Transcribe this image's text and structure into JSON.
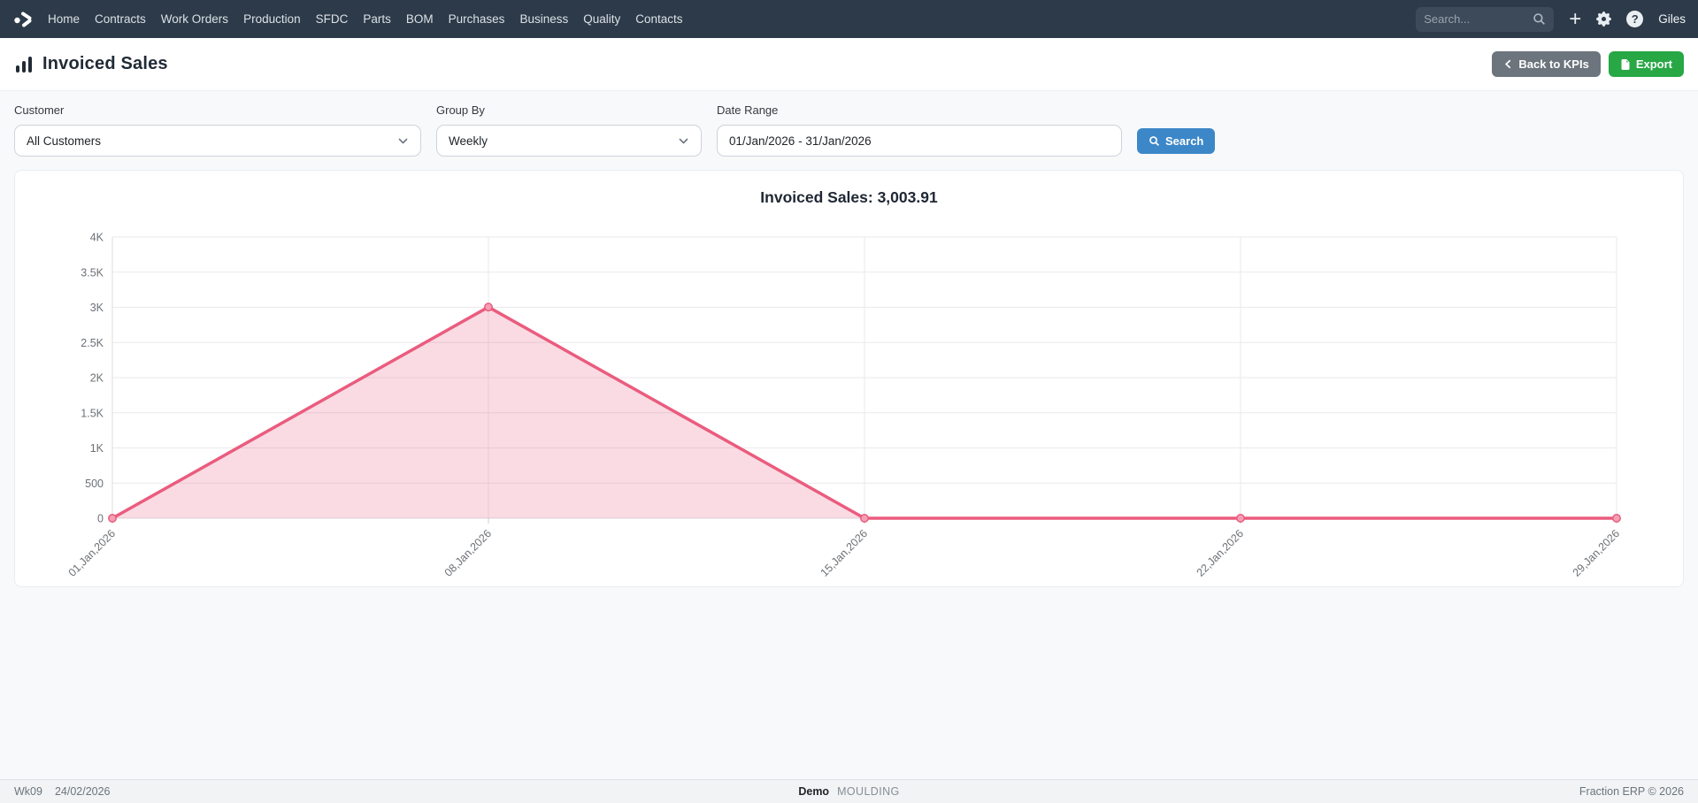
{
  "nav": {
    "items": [
      "Home",
      "Contracts",
      "Work Orders",
      "Production",
      "SFDC",
      "Parts",
      "BOM",
      "Purchases",
      "Business",
      "Quality",
      "Contacts"
    ],
    "search_placeholder": "Search...",
    "plus_glyph": "+",
    "help_glyph": "?",
    "user": "Giles"
  },
  "header": {
    "title": "Invoiced Sales",
    "back_button": "Back to KPIs",
    "export_button": "Export"
  },
  "filters": {
    "customer": {
      "label": "Customer",
      "value": "All Customers"
    },
    "group_by": {
      "label": "Group By",
      "value": "Weekly"
    },
    "date_range": {
      "label": "Date Range",
      "value": "01/Jan/2026 - 31/Jan/2026"
    },
    "search_button": "Search"
  },
  "chart_data": {
    "type": "area",
    "title": "Invoiced Sales: 3,003.91",
    "total": "3,003.91",
    "x": [
      "01,Jan,2026",
      "08,Jan,2026",
      "15,Jan,2026",
      "22,Jan,2026",
      "29,Jan,2026"
    ],
    "values": [
      0,
      3003.91,
      0,
      0,
      0
    ],
    "ylim": [
      0,
      4000
    ],
    "yticks": [
      0,
      500,
      1000,
      1500,
      2000,
      2500,
      3000,
      3500,
      4000
    ],
    "ytick_labels": [
      "0",
      "500",
      "1K",
      "1.5K",
      "2K",
      "2.5K",
      "3K",
      "3.5K",
      "4K"
    ],
    "grid": true,
    "legend": "none",
    "line_color": "#ea5c7e",
    "fill_color": "rgba(234,92,126,0.22)",
    "marker_fill": "#f49fb4",
    "grid_color": "#e9eaec",
    "tick_label_color": "#6d7176"
  },
  "footer": {
    "week": "Wk09",
    "date": "24/02/2026",
    "company": "Demo",
    "site": "MOULDING",
    "copyright": "Fraction ERP © 2026"
  }
}
